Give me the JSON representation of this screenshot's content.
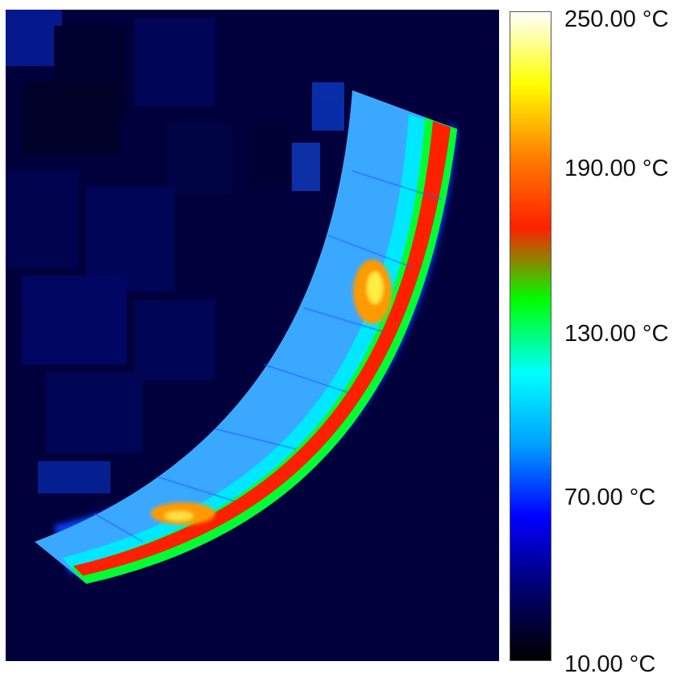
{
  "colorbar": {
    "ticks": [
      "250.00 °C",
      "190.00 °C",
      "130.00 °C",
      "70.00 °C",
      "10.00 °C"
    ],
    "range": [
      10,
      250
    ],
    "unit": "°C",
    "colormap": [
      "#000000",
      "#00006e",
      "#0000ff",
      "#00a0ff",
      "#00ffff",
      "#00ff00",
      "#ff2000",
      "#ff8000",
      "#ffff00",
      "#ffffff"
    ]
  },
  "image": {
    "subject": "infrared-thermal-camera-view",
    "hot_band_color": "#ff2000",
    "background_color": "#00003c"
  }
}
